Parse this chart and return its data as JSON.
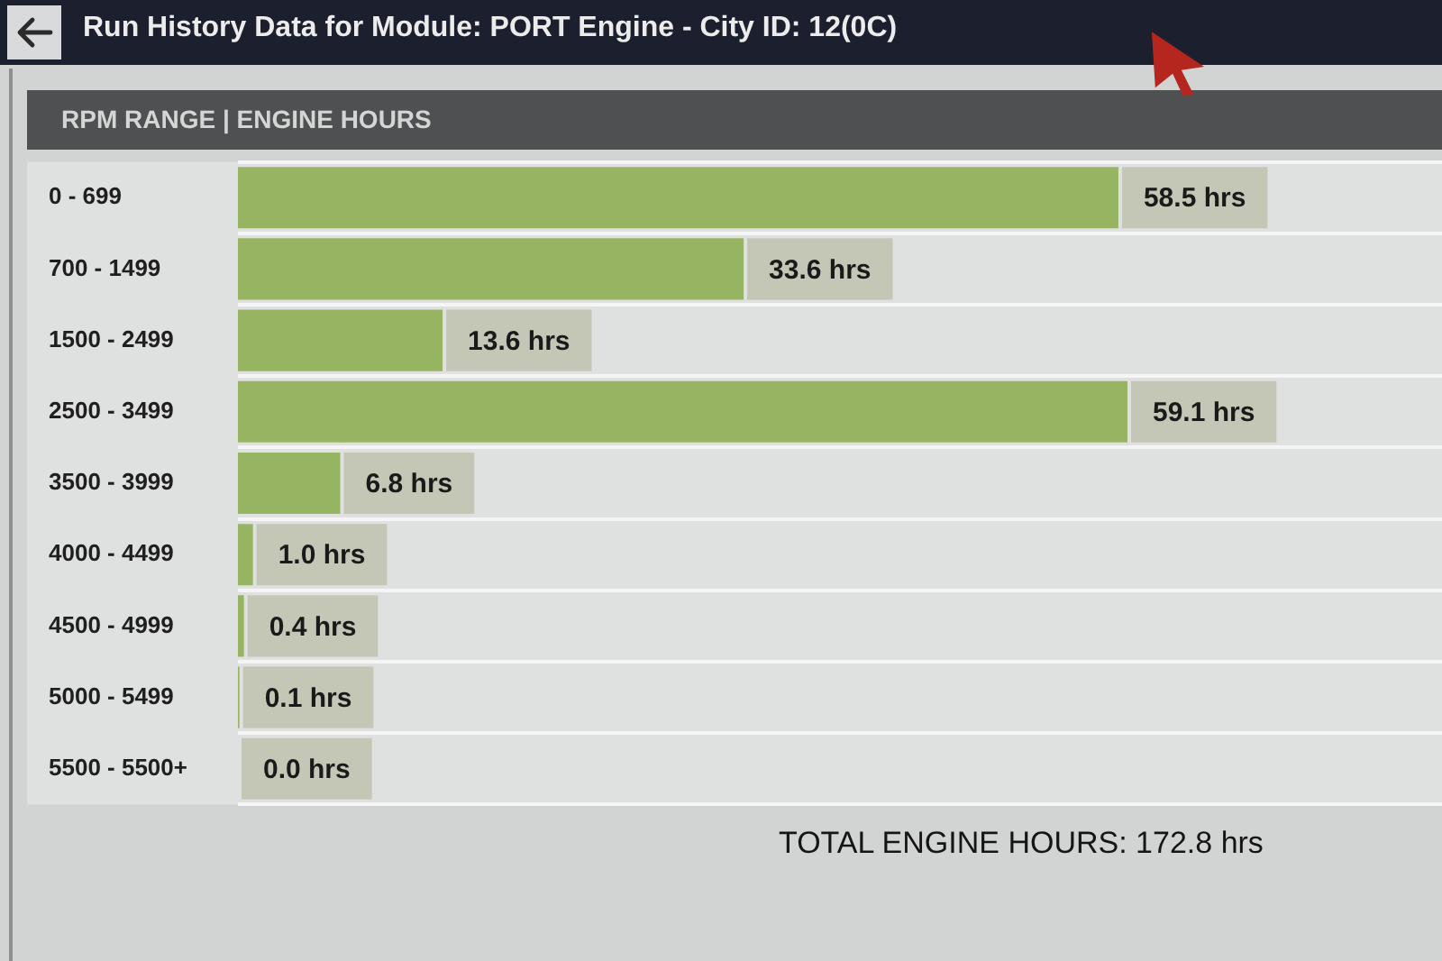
{
  "chart_data": {
    "type": "bar",
    "title": "Run History Data for Module: PORT Engine - City ID: 12(0C)",
    "subtitle": "RPM RANGE | ENGINE HOURS",
    "orientation": "horizontal",
    "categories": [
      "0 - 699",
      "700 - 1499",
      "1500 - 2499",
      "2500 - 3499",
      "3500 - 3999",
      "4000 - 4499",
      "4500 - 4999",
      "5000 - 5499",
      "5500 - 5500+"
    ],
    "values": [
      58.5,
      33.6,
      13.6,
      59.1,
      6.8,
      1.0,
      0.4,
      0.1,
      0.0
    ],
    "value_labels": [
      "58.5 hrs",
      "33.6 hrs",
      "13.6 hrs",
      "59.1 hrs",
      "6.8 hrs",
      "1.0 hrs",
      "0.4 hrs",
      "0.1 hrs",
      "0.0 hrs"
    ],
    "color": "#97b463",
    "grid": "y",
    "annotations": [
      "TOTAL ENGINE HOURS: 172.8 hrs"
    ]
  }
}
